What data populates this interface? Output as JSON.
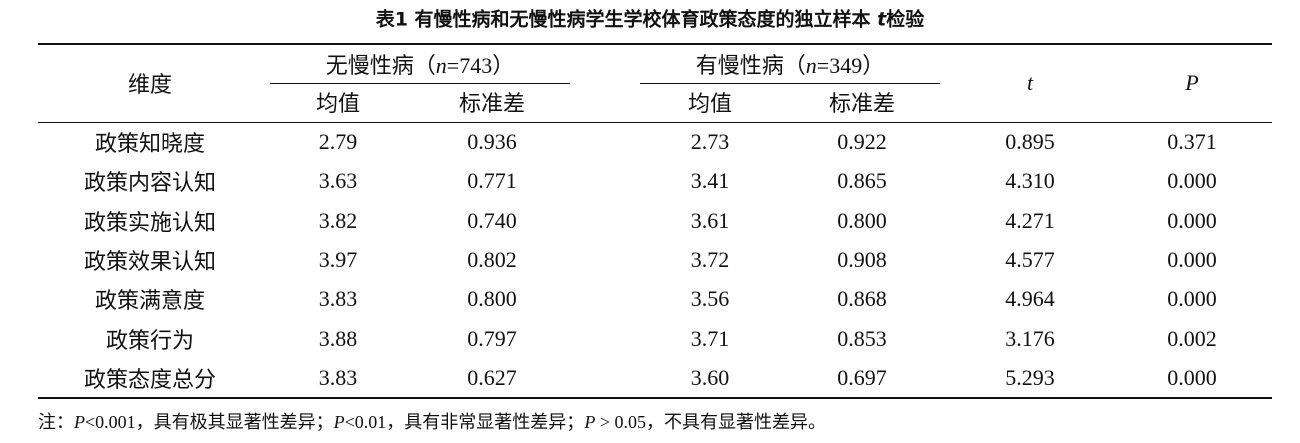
{
  "title": [
    "表1 有慢性病和无慢性病学生学校体育政策态度的独立样本 ",
    "t",
    "检验"
  ],
  "table": {
    "header": {
      "dimension": "维度",
      "groups": [
        {
          "label": [
            "无慢性病（",
            "n",
            "=743）"
          ],
          "columns": [
            "均值",
            "标准差"
          ]
        },
        {
          "label": [
            "有慢性病（",
            "n",
            "=349）"
          ],
          "columns": [
            "均值",
            "标准差"
          ]
        }
      ],
      "t": "t",
      "p": "P"
    },
    "rows": [
      [
        "政策知晓度",
        "2.79",
        "0.936",
        "2.73",
        "0.922",
        "0.895",
        "0.371"
      ],
      [
        "政策内容认知",
        "3.63",
        "0.771",
        "3.41",
        "0.865",
        "4.310",
        "0.000"
      ],
      [
        "政策实施认知",
        "3.82",
        "0.740",
        "3.61",
        "0.800",
        "4.271",
        "0.000"
      ],
      [
        "政策效果认知",
        "3.97",
        "0.802",
        "3.72",
        "0.908",
        "4.577",
        "0.000"
      ],
      [
        "政策满意度",
        "3.83",
        "0.800",
        "3.56",
        "0.868",
        "4.964",
        "0.000"
      ],
      [
        "政策行为",
        "3.88",
        "0.797",
        "3.71",
        "0.853",
        "3.176",
        "0.002"
      ],
      [
        "政策态度总分",
        "3.83",
        "0.627",
        "3.60",
        "0.697",
        "5.293",
        "0.000"
      ]
    ]
  },
  "note": [
    "注：",
    "P",
    "<0.001，具有极其显著性差异；",
    "P",
    "<0.01，具有非常显著性差异；",
    "P",
    " > 0.05，不具有显著性差异。"
  ]
}
